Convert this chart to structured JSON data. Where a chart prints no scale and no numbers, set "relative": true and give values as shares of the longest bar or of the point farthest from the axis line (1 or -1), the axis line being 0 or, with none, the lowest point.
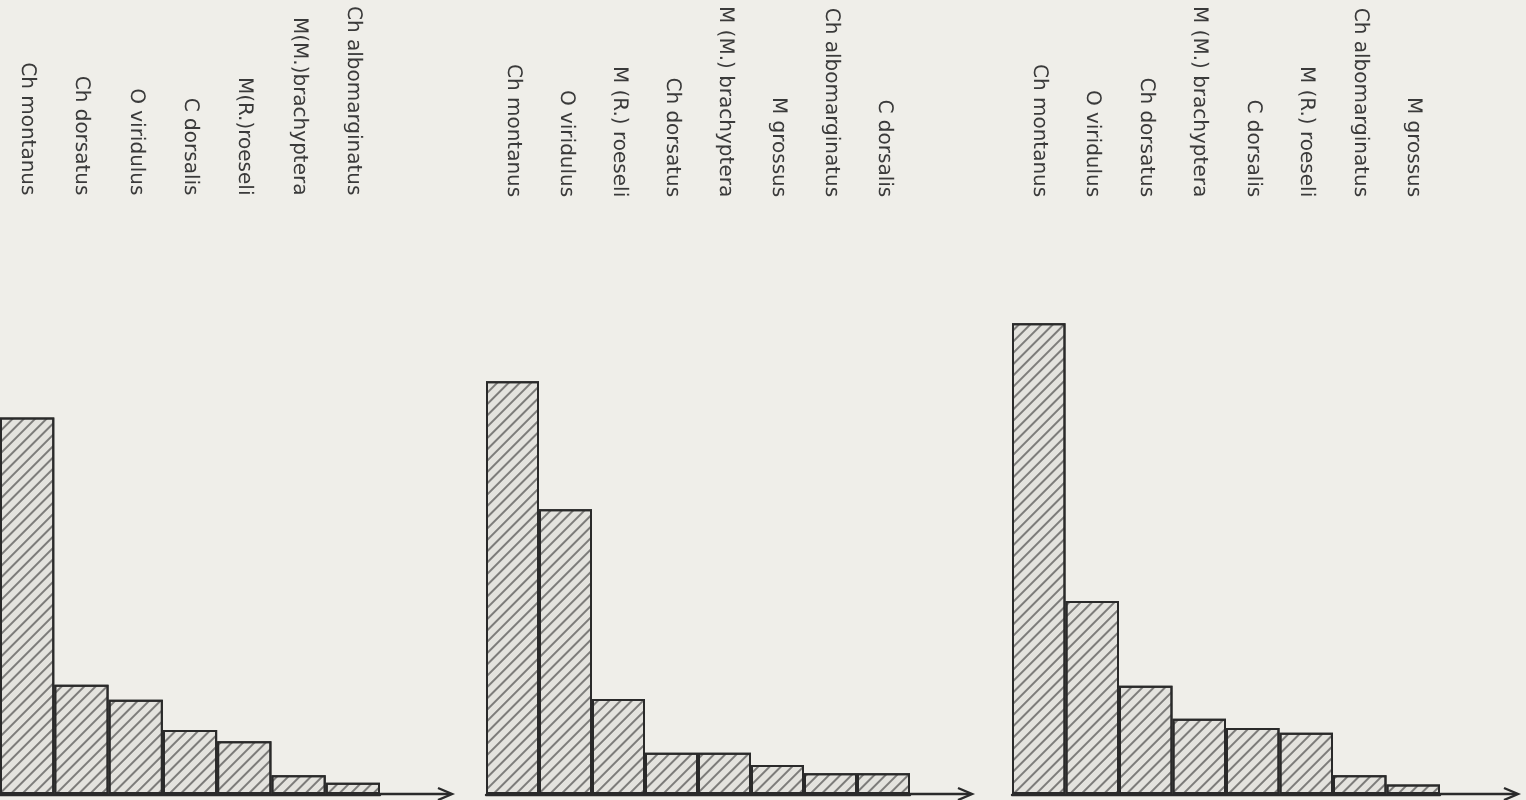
{
  "chart_data": [
    {
      "type": "bar",
      "relative": true,
      "categories": [
        "Ch montanus",
        "Ch dorsatus",
        "O viridulus",
        "C dorsalis",
        "M(R.)roeseli",
        "M(M.)brachyptera",
        "Ch albomarginatus"
      ],
      "values": [
        1,
        0.29,
        0.25,
        0.17,
        0.14,
        0.05,
        0.03
      ],
      "color": "#e4e3de"
    },
    {
      "type": "bar",
      "relative": true,
      "categories": [
        "Ch montanus",
        "O viridulus",
        "M (R.) roeseli",
        "Ch dorsatus",
        "M (M.) brachyptera",
        "M grossus",
        "Ch albomarginatus",
        "C dorsalis"
      ],
      "values": [
        1,
        0.69,
        0.23,
        0.1,
        0.1,
        0.07,
        0.05,
        0.05
      ],
      "color": "#e4e3de"
    },
    {
      "type": "bar",
      "relative": true,
      "categories": [
        "Ch montanus",
        "O viridulus",
        "Ch dorsatus",
        "M (M.) brachyptera",
        "C dorsalis",
        "M (R.) roeseli",
        "Ch albomarginatus",
        "M grossus"
      ],
      "values": [
        1,
        0.41,
        0.23,
        0.16,
        0.14,
        0.13,
        0.04,
        0.02
      ],
      "color": "#e4e3de"
    }
  ]
}
